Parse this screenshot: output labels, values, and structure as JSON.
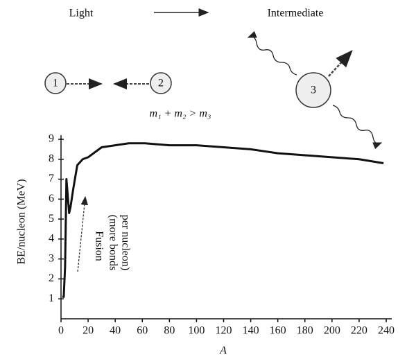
{
  "chart_data": {
    "type": "line",
    "x": [
      1,
      2,
      3,
      4,
      6,
      7,
      9,
      12,
      16,
      20,
      24,
      30,
      40,
      50,
      56,
      62,
      80,
      100,
      120,
      140,
      160,
      180,
      200,
      220,
      238
    ],
    "series": [
      {
        "color": "#111111",
        "values": [
          1.1,
          1.1,
          2.6,
          7.0,
          5.3,
          5.6,
          6.5,
          7.7,
          8.0,
          8.1,
          8.3,
          8.6,
          8.7,
          8.8,
          8.8,
          8.8,
          8.7,
          8.7,
          8.6,
          8.5,
          8.3,
          8.2,
          8.1,
          8.0,
          7.8
        ]
      }
    ],
    "xlim": [
      0,
      240
    ],
    "ylim": [
      0,
      9
    ],
    "xticks": [
      0,
      20,
      40,
      60,
      80,
      100,
      120,
      140,
      160,
      180,
      200,
      220,
      240
    ],
    "yticks": [
      1,
      2,
      3,
      4,
      5,
      6,
      7,
      8,
      9
    ],
    "xlabel": "A",
    "ylabel": "BE/nucleon (MeV)",
    "annotations": [
      "Fusion",
      "(more bonds",
      "per nucleon)"
    ],
    "diagram": {
      "light": "Light",
      "intermediate": "Intermediate",
      "nodes": [
        "1",
        "2",
        "3"
      ],
      "equation": "m₁ + m₂ > m₃"
    }
  }
}
